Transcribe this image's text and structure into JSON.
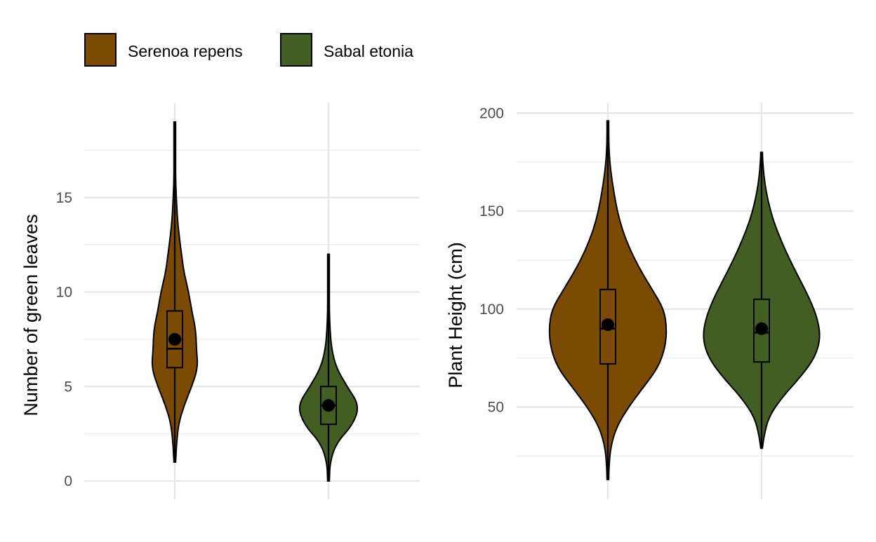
{
  "legend": {
    "items": [
      {
        "label": "Serenoa repens",
        "color": "#7B4A04"
      },
      {
        "label": "Sabal etonia",
        "color": "#435E22"
      }
    ]
  },
  "chart_data": [
    {
      "type": "violin",
      "panel": "left",
      "ylabel": "Number of green leaves",
      "xlabel": "",
      "ylim": [
        0,
        19
      ],
      "yticks": [
        0,
        5,
        10,
        15
      ],
      "grid": true,
      "legend_position": "top-left",
      "series": [
        {
          "name": "Serenoa repens",
          "color": "#7B4A04",
          "min": 1,
          "max": 19,
          "box": {
            "q1": 6,
            "median": 7,
            "q3": 9
          },
          "mean": 7.5,
          "density": [
            [
              1,
              0.02
            ],
            [
              2,
              0.06
            ],
            [
              3,
              0.12
            ],
            [
              4,
              0.3
            ],
            [
              5,
              0.55
            ],
            [
              6,
              0.75
            ],
            [
              7,
              0.7
            ],
            [
              8,
              0.68
            ],
            [
              9,
              0.55
            ],
            [
              10,
              0.45
            ],
            [
              11,
              0.3
            ],
            [
              12,
              0.22
            ],
            [
              13,
              0.14
            ],
            [
              14,
              0.08
            ],
            [
              15,
              0.05
            ],
            [
              16,
              0.02
            ],
            [
              17,
              0.015
            ],
            [
              18,
              0.01
            ],
            [
              19,
              0.005
            ]
          ]
        },
        {
          "name": "Sabal etonia",
          "color": "#435E22",
          "min": 0,
          "max": 12,
          "box": {
            "q1": 3,
            "median": 4,
            "q3": 5
          },
          "mean": 4,
          "density": [
            [
              0,
              0.01
            ],
            [
              1,
              0.05
            ],
            [
              2,
              0.25
            ],
            [
              3,
              0.8
            ],
            [
              4,
              1.0
            ],
            [
              5,
              0.6
            ],
            [
              6,
              0.25
            ],
            [
              7,
              0.1
            ],
            [
              8,
              0.05
            ],
            [
              9,
              0.025
            ],
            [
              10,
              0.015
            ],
            [
              11,
              0.01
            ],
            [
              12,
              0.005
            ]
          ]
        }
      ]
    },
    {
      "type": "violin",
      "panel": "right",
      "ylabel": "Plant Height (cm)",
      "xlabel": "",
      "ylim": [
        13,
        200
      ],
      "yticks": [
        50,
        100,
        150,
        200
      ],
      "grid": true,
      "series": [
        {
          "name": "Serenoa repens",
          "color": "#7B4A04",
          "min": 13,
          "max": 196,
          "box": {
            "q1": 72,
            "median": 90,
            "q3": 110
          },
          "mean": 92,
          "density": [
            [
              13,
              0.005
            ],
            [
              20,
              0.02
            ],
            [
              30,
              0.05
            ],
            [
              40,
              0.15
            ],
            [
              50,
              0.35
            ],
            [
              60,
              0.6
            ],
            [
              70,
              0.85
            ],
            [
              80,
              0.97
            ],
            [
              90,
              1.0
            ],
            [
              100,
              0.95
            ],
            [
              110,
              0.75
            ],
            [
              120,
              0.55
            ],
            [
              130,
              0.38
            ],
            [
              140,
              0.25
            ],
            [
              150,
              0.16
            ],
            [
              160,
              0.1
            ],
            [
              170,
              0.05
            ],
            [
              180,
              0.02
            ],
            [
              190,
              0.01
            ],
            [
              196,
              0.005
            ]
          ]
        },
        {
          "name": "Sabal etonia",
          "color": "#435E22",
          "min": 29,
          "max": 180,
          "box": {
            "q1": 73,
            "median": 88,
            "q3": 105
          },
          "mean": 90,
          "density": [
            [
              29,
              0.005
            ],
            [
              35,
              0.04
            ],
            [
              45,
              0.12
            ],
            [
              55,
              0.35
            ],
            [
              65,
              0.65
            ],
            [
              75,
              0.9
            ],
            [
              85,
              1.0
            ],
            [
              95,
              0.95
            ],
            [
              105,
              0.82
            ],
            [
              115,
              0.65
            ],
            [
              125,
              0.48
            ],
            [
              135,
              0.33
            ],
            [
              145,
              0.2
            ],
            [
              155,
              0.11
            ],
            [
              165,
              0.05
            ],
            [
              175,
              0.02
            ],
            [
              180,
              0.005
            ]
          ]
        }
      ]
    }
  ]
}
